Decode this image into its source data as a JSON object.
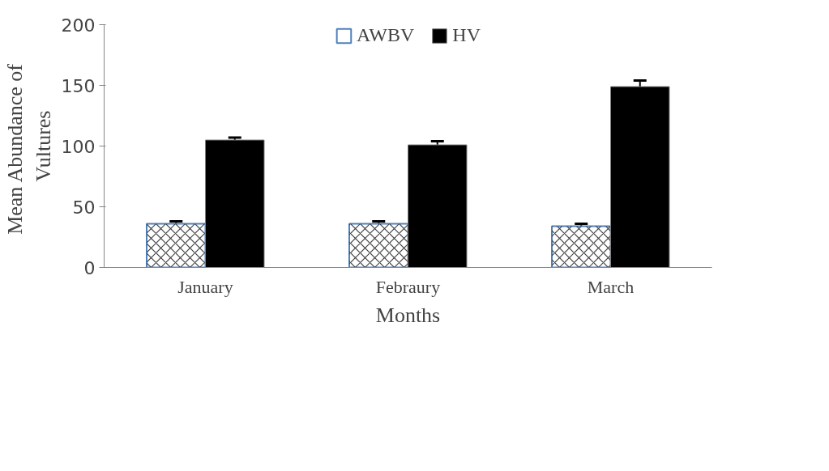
{
  "chart_data": {
    "type": "bar",
    "xlabel": "Months",
    "ylabel": "Mean  Abundance of Vultures",
    "categories": [
      "January",
      "Febraury",
      "March"
    ],
    "series": [
      {
        "name": "AWBV",
        "color": "#ffffff",
        "values": [
          36,
          36,
          34
        ],
        "errors": [
          2,
          2,
          2
        ]
      },
      {
        "name": "HV",
        "color": "#000000",
        "values": [
          105,
          101,
          149
        ],
        "errors": [
          2,
          3,
          5
        ]
      }
    ],
    "ylim": [
      0,
      200
    ],
    "yticks": [
      0,
      50,
      100,
      150,
      200
    ],
    "grid": false,
    "legend": "top"
  }
}
